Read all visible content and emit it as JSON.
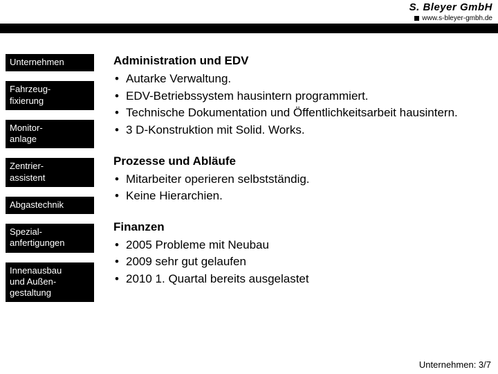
{
  "brand": {
    "name": "S. Bleyer GmbH",
    "url": "www.s-bleyer-gmbh.de"
  },
  "colors": {
    "navbar_bg": "#000000",
    "navbar_text": "#ffffff",
    "body_text": "#000000",
    "page_bg": "#ffffff"
  },
  "sidebar": {
    "items": [
      {
        "label": "Unternehmen"
      },
      {
        "label": "Fahrzeug-\nfixierung"
      },
      {
        "label": "Monitor-\nanlage"
      },
      {
        "label": "Zentrier-\nassistent"
      },
      {
        "label": "Abgastechnik"
      },
      {
        "label": "Spezial-\nanfertigungen"
      },
      {
        "label": "Innenausbau\nund Außen-\ngestaltung"
      }
    ]
  },
  "sections": [
    {
      "title": "Administration und EDV",
      "bullets": [
        "Autarke Verwaltung.",
        "EDV-Betriebssystem hausintern programmiert.",
        "Technische Dokumentation und Öffentlichkeits­arbeit hausintern.",
        "3 D-Konstruktion mit Solid. Works."
      ]
    },
    {
      "title": "Prozesse und Abläufe",
      "bullets": [
        "Mitarbeiter operieren selbstständig.",
        "Keine Hierarchien."
      ]
    },
    {
      "title": "Finanzen",
      "bullets": [
        "2005 Probleme mit Neubau",
        "2009 sehr gut gelaufen",
        "2010 1. Quartal bereits ausgelastet"
      ]
    }
  ],
  "footer": {
    "pagenum": "Unternehmen: 3/7"
  }
}
